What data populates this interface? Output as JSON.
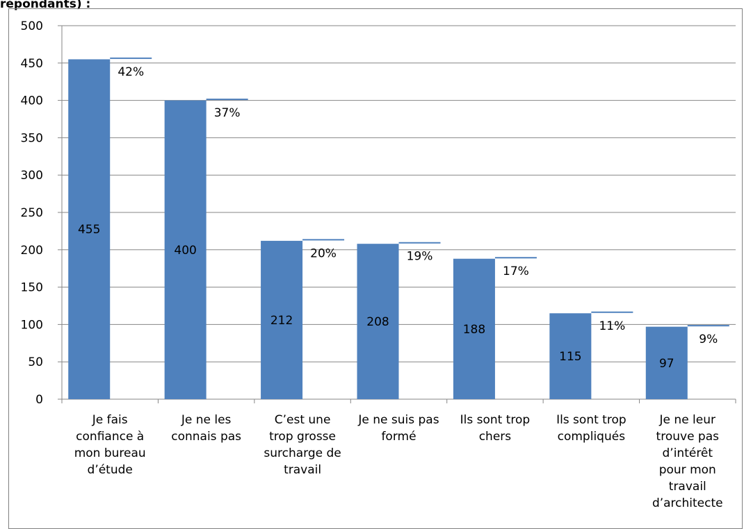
{
  "title_fragment": "répondants) :",
  "chart_data": {
    "type": "bar",
    "ylim": [
      0,
      500
    ],
    "yticks": [
      "0",
      "50",
      "100",
      "150",
      "200",
      "250",
      "300",
      "350",
      "400",
      "450",
      "500"
    ],
    "grid": true,
    "categories": [
      [
        "Je fais",
        "confiance à",
        "mon bureau",
        "d’étude"
      ],
      [
        "Je ne les",
        "connais pas"
      ],
      [
        "C’est une",
        "trop grosse",
        "surcharge de",
        "travail"
      ],
      [
        "Je ne suis pas",
        "formé"
      ],
      [
        "Ils sont trop",
        "chers"
      ],
      [
        "Ils sont trop",
        "compliqués"
      ],
      [
        "Je ne leur",
        "trouve pas",
        "d’intérêt",
        "pour mon",
        "travail",
        "d’architecte"
      ]
    ],
    "series": [
      {
        "values": [
          455,
          400,
          212,
          208,
          188,
          115,
          97
        ],
        "labels": [
          "455",
          "400",
          "212",
          "208",
          "188",
          "115",
          "97"
        ],
        "color": "#4f81bd"
      },
      {
        "values": [
          455,
          400,
          212,
          208,
          188,
          115,
          97
        ],
        "labels": [
          "42%",
          "37%",
          "20%",
          "19%",
          "17%",
          "11%",
          "9%"
        ],
        "color": "#4f81bd"
      }
    ]
  }
}
